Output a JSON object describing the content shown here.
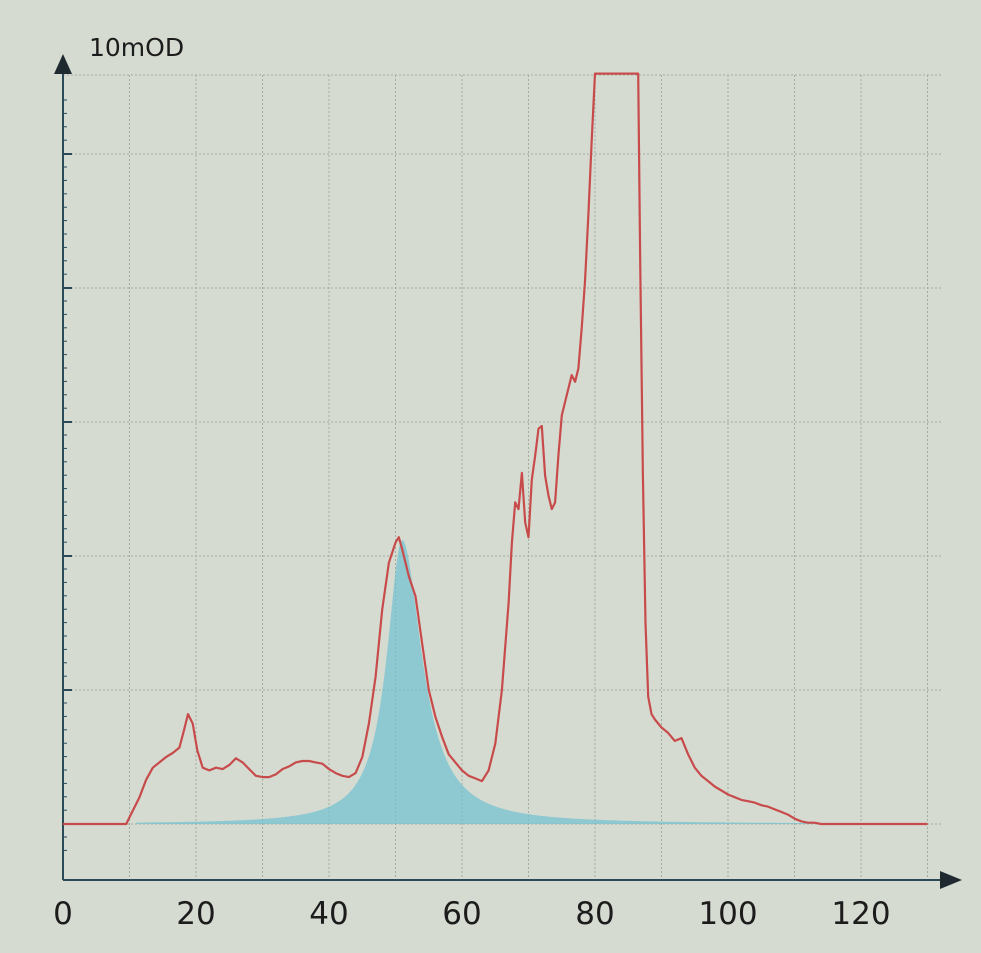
{
  "chart_data": {
    "type": "area",
    "y_unit_label": "10mOD",
    "x_ticks": [
      "0",
      "20",
      "40",
      "60",
      "80",
      "100",
      "120"
    ],
    "xlim": [
      0,
      135
    ],
    "ylim": [
      -0.3,
      5.6
    ],
    "grid": true,
    "colors": {
      "trace": "#c84b4b",
      "fill": "#6fc0cf",
      "axis": "#2c4a55",
      "grid": "#a3aba1",
      "background": "#d6dbd2"
    },
    "series": [
      {
        "values_x": [
          0,
          5,
          9.5,
          10.5,
          11.5,
          12.5,
          13.5,
          14.5,
          15.5,
          16.5,
          17.5,
          18.2,
          18.8,
          19.5,
          20.2,
          21,
          22,
          23,
          24,
          25,
          26,
          27,
          28,
          29,
          30,
          31,
          32,
          33,
          34,
          35,
          36,
          37,
          38,
          39,
          40,
          41,
          42,
          43,
          44,
          45,
          46,
          47,
          48,
          49,
          50,
          50.5,
          51,
          51.5,
          52,
          53,
          54,
          55,
          56,
          57,
          58,
          59,
          60,
          61,
          62,
          63,
          64,
          65,
          66,
          67,
          67.5,
          68,
          68.5,
          69,
          69.5,
          70,
          70.5,
          71,
          71.5,
          72,
          72.5,
          73,
          73.5,
          74,
          74.5,
          75,
          75.5,
          76,
          76.5,
          77,
          77.5,
          78,
          78.5,
          79,
          79.5,
          80,
          86.5,
          86.8,
          87.2,
          87.6,
          88,
          88.5,
          89,
          90,
          91,
          92,
          93,
          94,
          95,
          96,
          97,
          98,
          99,
          100,
          101,
          102,
          103,
          104,
          105,
          106,
          107,
          108,
          109,
          110,
          111,
          112,
          113,
          114,
          115,
          116,
          118,
          120,
          122,
          124,
          126,
          128,
          130
        ],
        "values_y": [
          0,
          0,
          0,
          0.1,
          0.2,
          0.33,
          0.42,
          0.46,
          0.5,
          0.53,
          0.57,
          0.7,
          0.82,
          0.75,
          0.55,
          0.42,
          0.4,
          0.42,
          0.41,
          0.44,
          0.49,
          0.46,
          0.41,
          0.36,
          0.35,
          0.35,
          0.37,
          0.41,
          0.43,
          0.46,
          0.47,
          0.47,
          0.46,
          0.45,
          0.41,
          0.38,
          0.36,
          0.35,
          0.38,
          0.5,
          0.75,
          1.1,
          1.6,
          1.95,
          2.1,
          2.14,
          2.05,
          1.95,
          1.85,
          1.7,
          1.35,
          1.0,
          0.8,
          0.65,
          0.52,
          0.46,
          0.4,
          0.36,
          0.34,
          0.32,
          0.4,
          0.6,
          1.0,
          1.65,
          2.1,
          2.4,
          2.35,
          2.62,
          2.25,
          2.14,
          2.57,
          2.75,
          2.95,
          2.97,
          2.6,
          2.45,
          2.35,
          2.4,
          2.75,
          3.05,
          3.15,
          3.25,
          3.35,
          3.3,
          3.4,
          3.7,
          4.05,
          4.55,
          5.1,
          5.6,
          5.6,
          4.2,
          2.6,
          1.5,
          0.95,
          0.82,
          0.78,
          0.72,
          0.68,
          0.62,
          0.64,
          0.52,
          0.42,
          0.36,
          0.32,
          0.28,
          0.25,
          0.22,
          0.2,
          0.18,
          0.17,
          0.16,
          0.14,
          0.13,
          0.11,
          0.09,
          0.07,
          0.04,
          0.02,
          0.01,
          0.01,
          0,
          0,
          0,
          0,
          0,
          0,
          0,
          0,
          0,
          0
        ],
        "color": "#c84b4b"
      }
    ],
    "fill_peak": {
      "center_x": 51,
      "height": 2.12,
      "gamma_left": 2.8,
      "gamma_right": 3.6,
      "x_range": [
        11,
        113
      ],
      "color": "#6fc0cf"
    }
  }
}
